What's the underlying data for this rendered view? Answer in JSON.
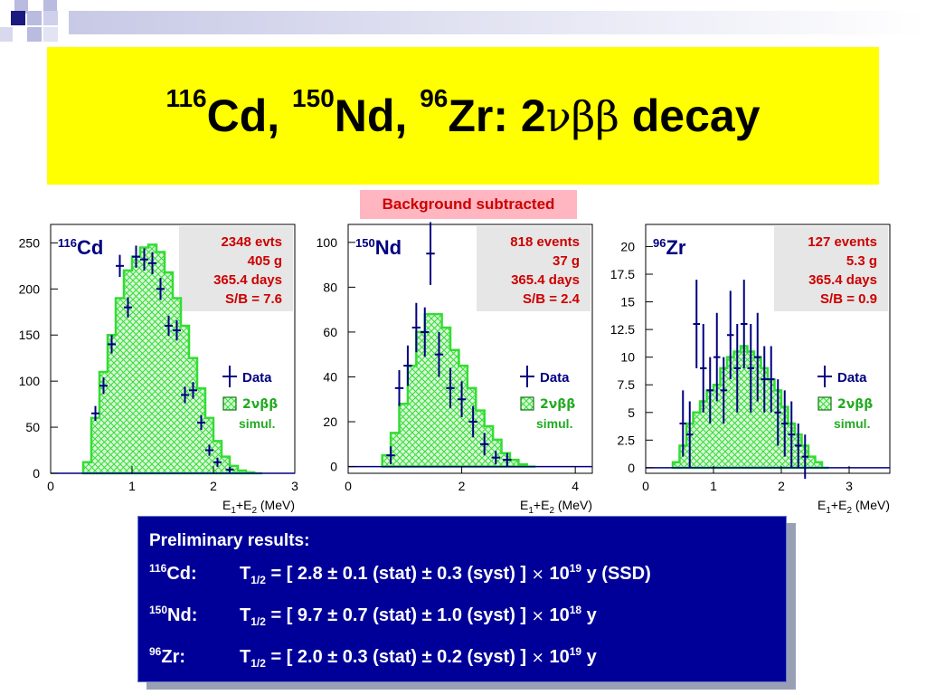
{
  "slide": {
    "title": {
      "m1": "116",
      "e1": "Cd, ",
      "m2": "150",
      "e2": "Nd, ",
      "m3": "96",
      "e3": "Zr: 2",
      "greek": "νββ",
      "tail": " decay"
    },
    "background_label": "Background subtracted",
    "legend": {
      "data_label": "Data",
      "sim_label_greek": "2νββ",
      "sim_label_2": "simul."
    },
    "results": {
      "heading": "Preliminary results:",
      "rows": [
        {
          "mass": "116",
          "element": "Cd:",
          "t": "T",
          "t_sub": "1/2",
          "value": " =  [ 2.8 ± 0.1 (stat) ± 0.3 (syst) ] ",
          "times": "×",
          "base": " 10",
          "exp": "19",
          "suffix": " y (SSD)"
        },
        {
          "mass": "150",
          "element": "Nd:",
          "t": "T",
          "t_sub": "1/2",
          "value": " =  [ 9.7 ± 0.7 (stat) ± 1.0 (syst) ] ",
          "times": "×",
          "base": " 10",
          "exp": "18",
          "suffix": " y"
        },
        {
          "mass": "96",
          "element": "Zr:",
          "t": "T",
          "t_sub": "1/2",
          "value": " =  [ 2.0 ± 0.3 (stat) ± 0.2 (syst) ] ",
          "times": "×",
          "base": " 10",
          "exp": "19",
          "suffix": " y"
        }
      ]
    },
    "colors": {
      "title_bg": "#ffff00",
      "sim_green": "#33dd33",
      "data_blue": "#000080",
      "info_red": "#cc0000",
      "results_bg": "#000099"
    }
  },
  "chart_data": [
    {
      "type": "histogram",
      "isotope_mass": "116",
      "isotope_name": "Cd",
      "xlabel": "E1+E2 (MeV)",
      "xlim": [
        0,
        3
      ],
      "ylim": [
        0,
        270
      ],
      "xticks": [
        0,
        1,
        2,
        3
      ],
      "yticks": [
        0,
        50,
        100,
        150,
        200,
        250
      ],
      "info": [
        "2348 evts",
        "405 g",
        "365.4 days",
        "S/B = 7.6"
      ],
      "bin_width": 0.1,
      "sim": [
        [
          0.4,
          12
        ],
        [
          0.5,
          60
        ],
        [
          0.6,
          110
        ],
        [
          0.7,
          150
        ],
        [
          0.8,
          190
        ],
        [
          0.9,
          220
        ],
        [
          1.0,
          235
        ],
        [
          1.1,
          245
        ],
        [
          1.2,
          248
        ],
        [
          1.3,
          240
        ],
        [
          1.4,
          218
        ],
        [
          1.5,
          190
        ],
        [
          1.6,
          160
        ],
        [
          1.7,
          125
        ],
        [
          1.8,
          92
        ],
        [
          1.9,
          60
        ],
        [
          2.0,
          35
        ],
        [
          2.1,
          18
        ],
        [
          2.2,
          8
        ],
        [
          2.3,
          3
        ],
        [
          2.4,
          1
        ],
        [
          2.5,
          0
        ]
      ],
      "data": [
        [
          0.55,
          65,
          8
        ],
        [
          0.65,
          95,
          9
        ],
        [
          0.75,
          140,
          10
        ],
        [
          0.85,
          225,
          12
        ],
        [
          0.95,
          180,
          11
        ],
        [
          1.05,
          235,
          12
        ],
        [
          1.15,
          232,
          12
        ],
        [
          1.25,
          228,
          12
        ],
        [
          1.35,
          200,
          12
        ],
        [
          1.45,
          160,
          11
        ],
        [
          1.55,
          155,
          11
        ],
        [
          1.65,
          85,
          9
        ],
        [
          1.75,
          90,
          9
        ],
        [
          1.85,
          55,
          8
        ],
        [
          1.95,
          25,
          6
        ],
        [
          2.05,
          12,
          5
        ],
        [
          2.2,
          4,
          3
        ]
      ]
    },
    {
      "type": "histogram",
      "isotope_mass": "150",
      "isotope_name": "Nd",
      "xlabel": "E1+E2 (MeV)",
      "xlim": [
        0,
        4.3
      ],
      "ylim": [
        -3,
        108
      ],
      "xticks": [
        0,
        2,
        4
      ],
      "yticks": [
        0,
        20,
        40,
        60,
        80,
        100
      ],
      "info": [
        "818 events",
        "37 g",
        "365.4 days",
        "S/B = 2.4"
      ],
      "bin_width": 0.15,
      "sim": [
        [
          0.6,
          5
        ],
        [
          0.75,
          15
        ],
        [
          0.9,
          28
        ],
        [
          1.05,
          45
        ],
        [
          1.2,
          60
        ],
        [
          1.35,
          68
        ],
        [
          1.5,
          68
        ],
        [
          1.65,
          62
        ],
        [
          1.8,
          52
        ],
        [
          1.95,
          45
        ],
        [
          2.1,
          35
        ],
        [
          2.25,
          25
        ],
        [
          2.4,
          18
        ],
        [
          2.55,
          12
        ],
        [
          2.7,
          6
        ],
        [
          2.85,
          3
        ],
        [
          3.0,
          1
        ],
        [
          3.15,
          0
        ]
      ],
      "data": [
        [
          0.75,
          5,
          4
        ],
        [
          0.9,
          35,
          8
        ],
        [
          1.05,
          45,
          9
        ],
        [
          1.2,
          62,
          11
        ],
        [
          1.35,
          60,
          11
        ],
        [
          1.45,
          95,
          14
        ],
        [
          1.6,
          50,
          10
        ],
        [
          1.8,
          35,
          9
        ],
        [
          2.0,
          30,
          8
        ],
        [
          2.2,
          20,
          7
        ],
        [
          2.4,
          10,
          5
        ],
        [
          2.6,
          4,
          3
        ],
        [
          2.8,
          3,
          3
        ]
      ]
    },
    {
      "type": "histogram",
      "isotope_mass": "96",
      "isotope_name": "Zr",
      "xlabel": "E1+E2 (MeV)",
      "xlim": [
        0,
        3.6
      ],
      "ylim": [
        -0.5,
        22
      ],
      "xticks": [
        0,
        1,
        2,
        3
      ],
      "yticks": [
        0,
        2.5,
        5,
        7.5,
        10,
        12.5,
        15,
        17.5,
        20
      ],
      "info": [
        "127 events",
        "5.3 g",
        "365.4 days",
        "S/B = 0.9"
      ],
      "bin_width": 0.1,
      "sim": [
        [
          0.4,
          0.5
        ],
        [
          0.5,
          2
        ],
        [
          0.6,
          4
        ],
        [
          0.7,
          5
        ],
        [
          0.8,
          6
        ],
        [
          0.9,
          7
        ],
        [
          1.0,
          7.5
        ],
        [
          1.1,
          9
        ],
        [
          1.2,
          10
        ],
        [
          1.3,
          10.5
        ],
        [
          1.4,
          11
        ],
        [
          1.5,
          10.5
        ],
        [
          1.6,
          10
        ],
        [
          1.7,
          9
        ],
        [
          1.8,
          8
        ],
        [
          1.9,
          7
        ],
        [
          2.0,
          5.5
        ],
        [
          2.1,
          4
        ],
        [
          2.2,
          3
        ],
        [
          2.3,
          2
        ],
        [
          2.4,
          1
        ],
        [
          2.5,
          0.5
        ],
        [
          2.6,
          0
        ]
      ],
      "data": [
        [
          0.55,
          4,
          3
        ],
        [
          0.65,
          3,
          3
        ],
        [
          0.75,
          13,
          4
        ],
        [
          0.85,
          9,
          4
        ],
        [
          0.95,
          7,
          3
        ],
        [
          1.05,
          10,
          4
        ],
        [
          1.15,
          7,
          3
        ],
        [
          1.25,
          12,
          4
        ],
        [
          1.35,
          9,
          4
        ],
        [
          1.45,
          13,
          4
        ],
        [
          1.55,
          9,
          4
        ],
        [
          1.65,
          10,
          4
        ],
        [
          1.75,
          8,
          3
        ],
        [
          1.85,
          8,
          3
        ],
        [
          1.95,
          5,
          3
        ],
        [
          2.05,
          4,
          3
        ],
        [
          2.15,
          3,
          3
        ],
        [
          2.25,
          2,
          2
        ],
        [
          2.35,
          1,
          2
        ]
      ]
    }
  ]
}
